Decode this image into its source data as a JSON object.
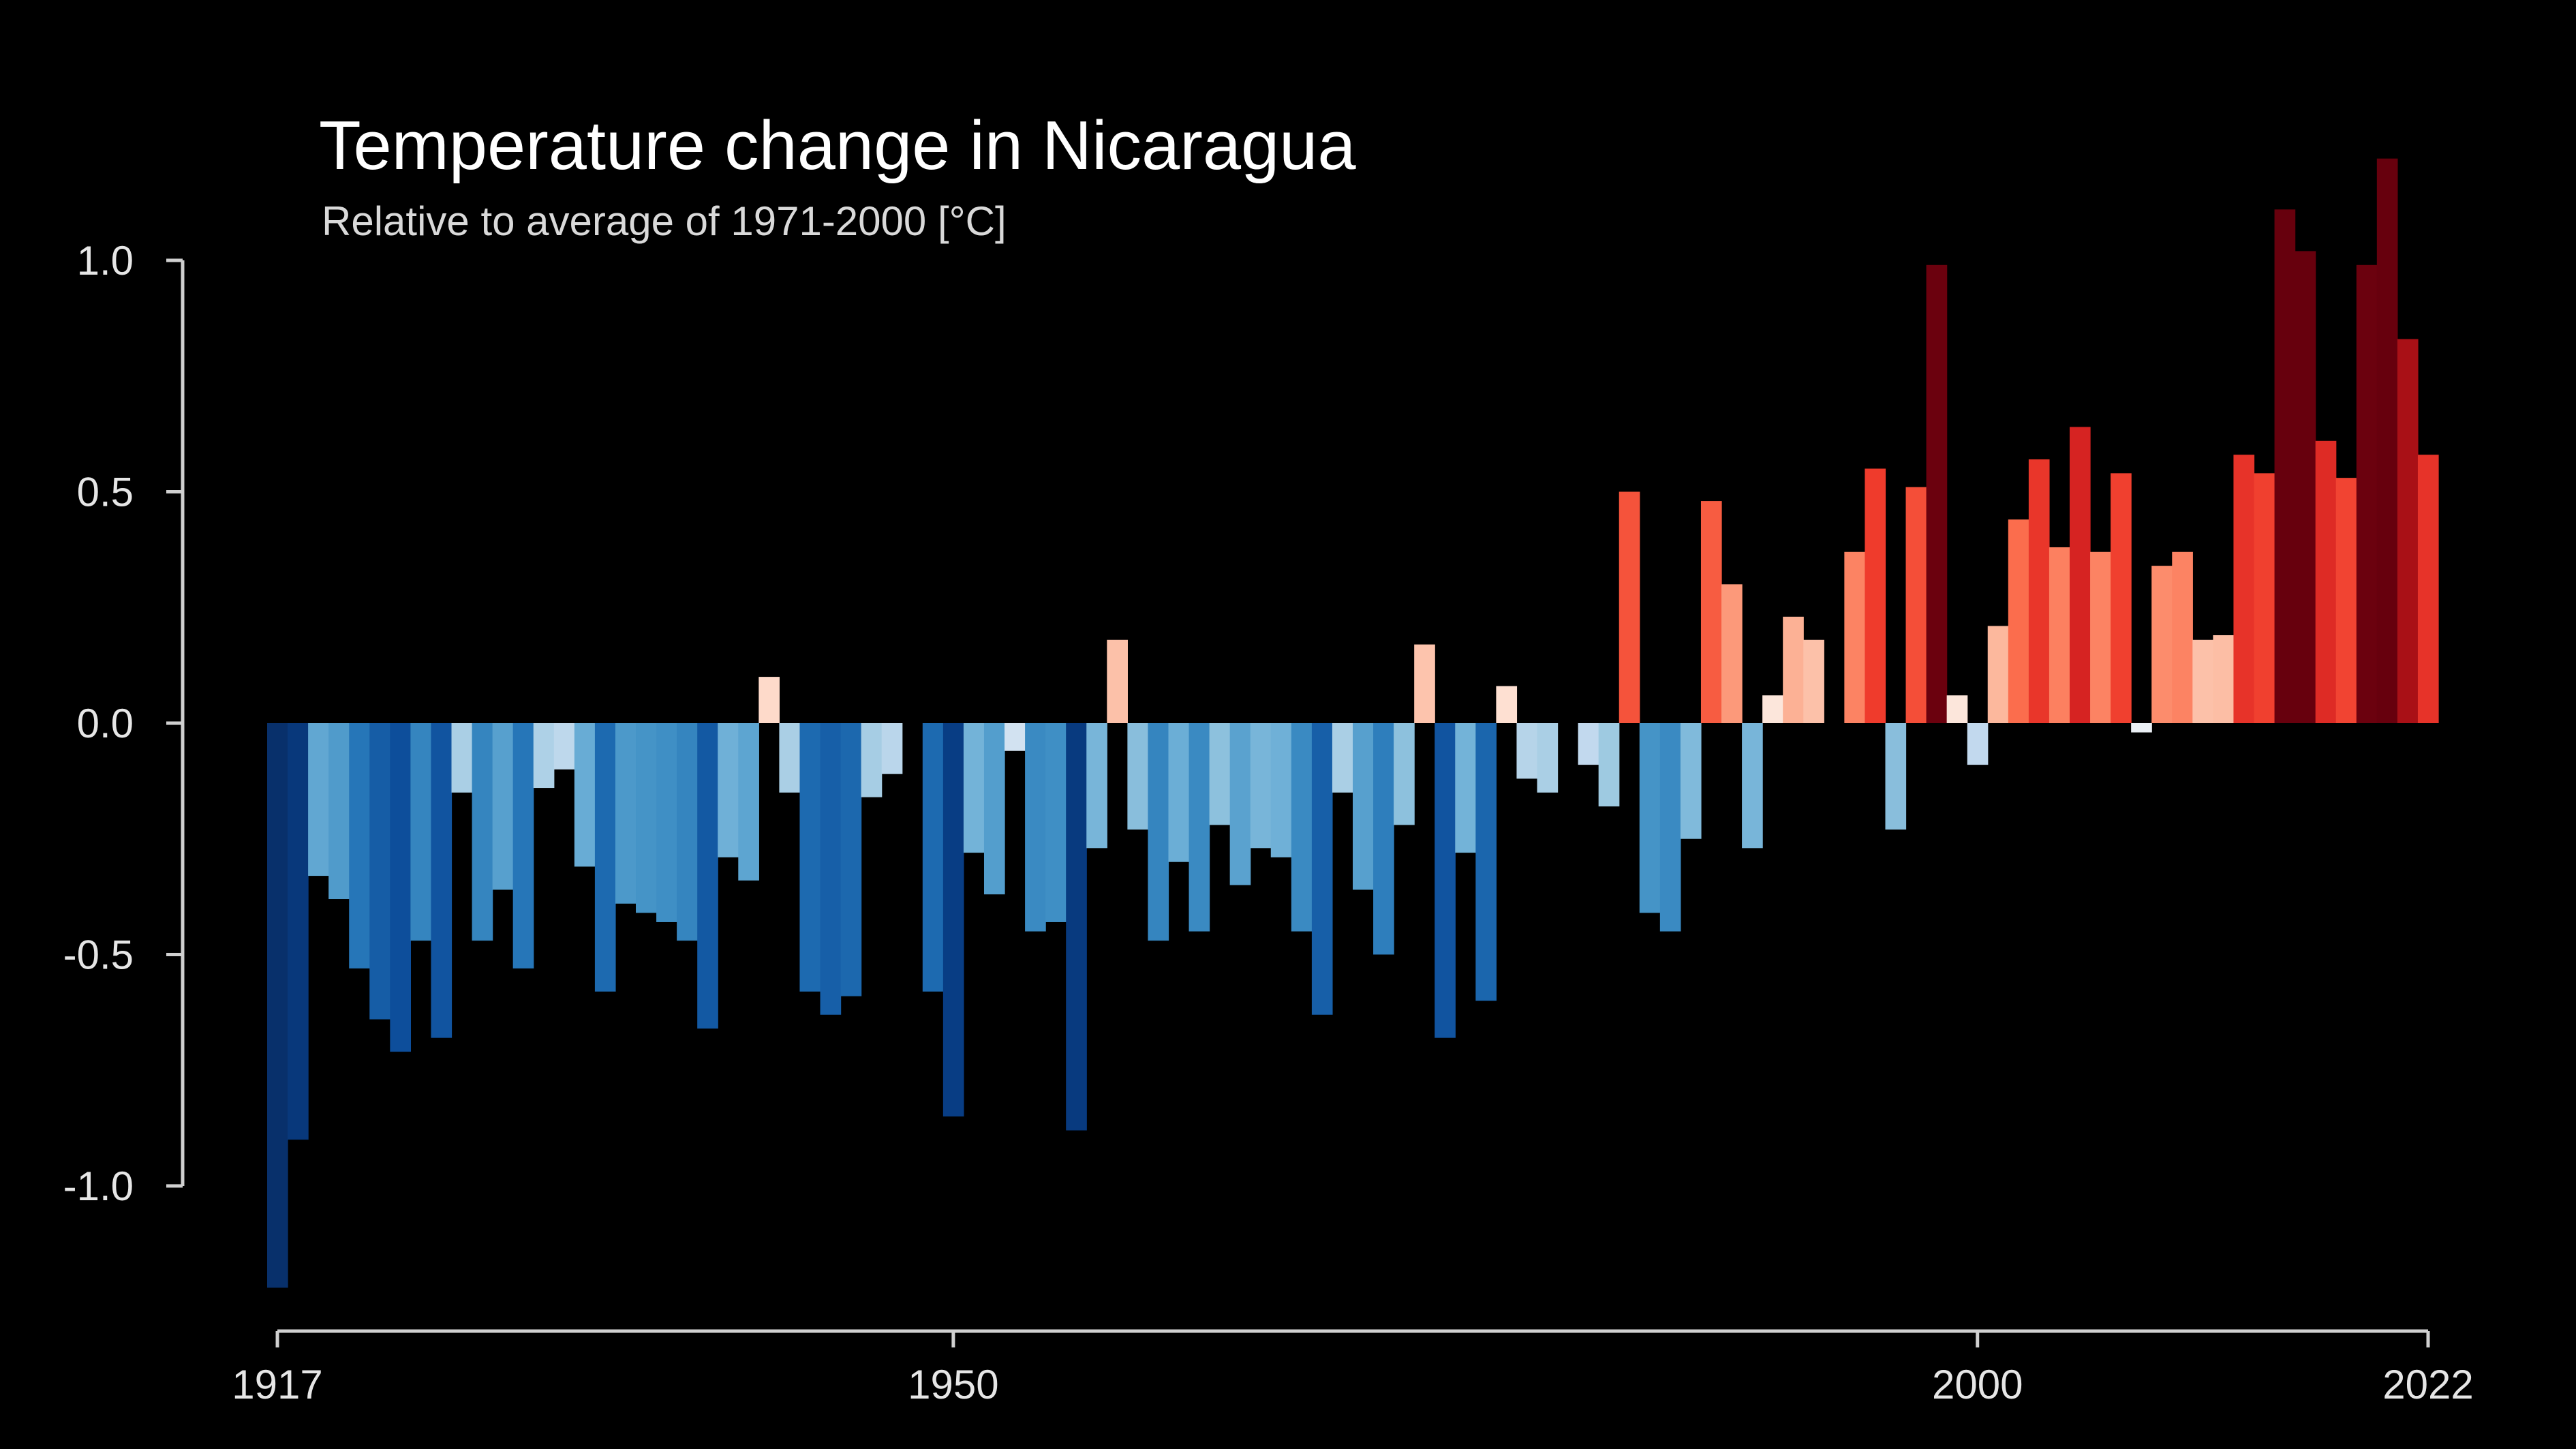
{
  "chart_data": {
    "type": "bar",
    "title": "Temperature change in Nicaragua",
    "subtitle": "Relative to average of 1971-2000  [°C]",
    "xlabel": "",
    "ylabel": "",
    "x_start": 1917,
    "x_end": 2022,
    "xlim": [
      1917,
      2022
    ],
    "ylim": [
      -1.25,
      1.1
    ],
    "x_ticks": [
      1917,
      1950,
      2000,
      2022
    ],
    "x_tick_labels": [
      "1917",
      "1950",
      "2000",
      "2022"
    ],
    "y_ticks": [
      1.0,
      0.5,
      0.0,
      -0.5,
      -1.0
    ],
    "y_tick_labels": [
      "1.0",
      "0.5",
      "0.0",
      "-0.5",
      "-1.0"
    ],
    "grid": false,
    "legend": "none",
    "colors": {
      "background": "#000000",
      "cold_extreme": "#08306b",
      "warm_extreme": "#67000d",
      "axis": "#d0d0d0"
    },
    "years": [
      1917,
      1918,
      1919,
      1920,
      1921,
      1922,
      1923,
      1924,
      1925,
      1926,
      1927,
      1928,
      1929,
      1930,
      1931,
      1932,
      1933,
      1934,
      1935,
      1936,
      1937,
      1938,
      1939,
      1940,
      1941,
      1942,
      1943,
      1944,
      1945,
      1946,
      1947,
      1948,
      1949,
      1950,
      1951,
      1952,
      1953,
      1954,
      1955,
      1956,
      1957,
      1958,
      1959,
      1960,
      1961,
      1962,
      1963,
      1964,
      1965,
      1966,
      1967,
      1968,
      1969,
      1970,
      1971,
      1972,
      1973,
      1974,
      1975,
      1976,
      1977,
      1978,
      1979,
      1980,
      1981,
      1982,
      1983,
      1984,
      1985,
      1986,
      1987,
      1988,
      1989,
      1990,
      1991,
      1992,
      1993,
      1994,
      1995,
      1996,
      1997,
      1998,
      1999,
      2000,
      2001,
      2002,
      2003,
      2004,
      2005,
      2006,
      2007,
      2008,
      2009,
      2010,
      2011,
      2012,
      2013,
      2014,
      2015,
      2016,
      2017,
      2018,
      2019,
      2020,
      2021,
      2022
    ],
    "values": [
      -1.22,
      -0.9,
      -0.33,
      -0.38,
      -0.53,
      -0.64,
      -0.71,
      -0.47,
      -0.68,
      -0.15,
      -0.47,
      -0.36,
      -0.53,
      -0.14,
      -0.1,
      -0.31,
      -0.58,
      -0.39,
      -0.41,
      -0.43,
      -0.47,
      -0.66,
      -0.29,
      -0.34,
      0.1,
      -0.15,
      -0.58,
      -0.63,
      -0.59,
      -0.16,
      -0.11,
      0.0,
      -0.58,
      -0.85,
      -0.28,
      -0.37,
      -0.06,
      -0.45,
      -0.43,
      -0.88,
      -0.27,
      0.18,
      -0.23,
      -0.47,
      -0.3,
      -0.45,
      -0.22,
      -0.35,
      -0.27,
      -0.29,
      -0.45,
      -0.63,
      -0.15,
      -0.36,
      -0.5,
      -0.22,
      0.17,
      -0.68,
      -0.28,
      -0.6,
      0.08,
      -0.12,
      -0.15,
      0.0,
      -0.09,
      -0.18,
      0.5,
      -0.41,
      -0.45,
      -0.25,
      0.48,
      0.3,
      -0.27,
      0.06,
      0.23,
      0.18,
      0.0,
      0.37,
      0.55,
      -0.23,
      0.51,
      0.99,
      0.06,
      -0.09,
      0.21,
      0.44,
      0.57,
      0.38,
      0.64,
      0.37,
      0.54,
      -0.02,
      0.34,
      0.37,
      0.18,
      0.19,
      0.58,
      0.54,
      1.11,
      1.02,
      0.61,
      0.53,
      0.99,
      1.22,
      0.83,
      0.58
    ]
  }
}
